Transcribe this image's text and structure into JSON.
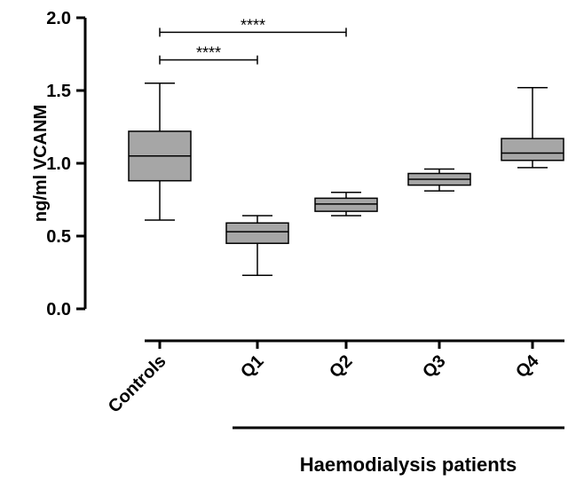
{
  "chart_data": {
    "type": "box",
    "ylabel": "ng/ml VCANM",
    "ylim": [
      0,
      2.0
    ],
    "yticks": [
      "0.0",
      "0.5",
      "1.0",
      "1.5",
      "2.0"
    ],
    "categories": [
      "Controls",
      "Q1",
      "Q2",
      "Q3",
      "Q4"
    ],
    "group_label": "Haemodialysis patients",
    "boxes": [
      {
        "name": "Controls",
        "min": 0.61,
        "q1": 0.88,
        "median": 1.05,
        "q3": 1.22,
        "max": 1.55
      },
      {
        "name": "Q1",
        "min": 0.23,
        "q1": 0.45,
        "median": 0.53,
        "q3": 0.59,
        "max": 0.64
      },
      {
        "name": "Q2",
        "min": 0.64,
        "q1": 0.67,
        "median": 0.72,
        "q3": 0.76,
        "max": 0.8
      },
      {
        "name": "Q3",
        "min": 0.81,
        "q1": 0.85,
        "median": 0.89,
        "q3": 0.93,
        "max": 0.96
      },
      {
        "name": "Q4",
        "min": 0.97,
        "q1": 1.02,
        "median": 1.07,
        "q3": 1.17,
        "max": 1.52
      }
    ],
    "significance": [
      {
        "from": "Controls",
        "to": "Q1",
        "y": 1.71,
        "label": "****"
      },
      {
        "from": "Controls",
        "to": "Q2",
        "y": 1.9,
        "label": "****"
      }
    ],
    "box_color": "#a6a6a6"
  }
}
